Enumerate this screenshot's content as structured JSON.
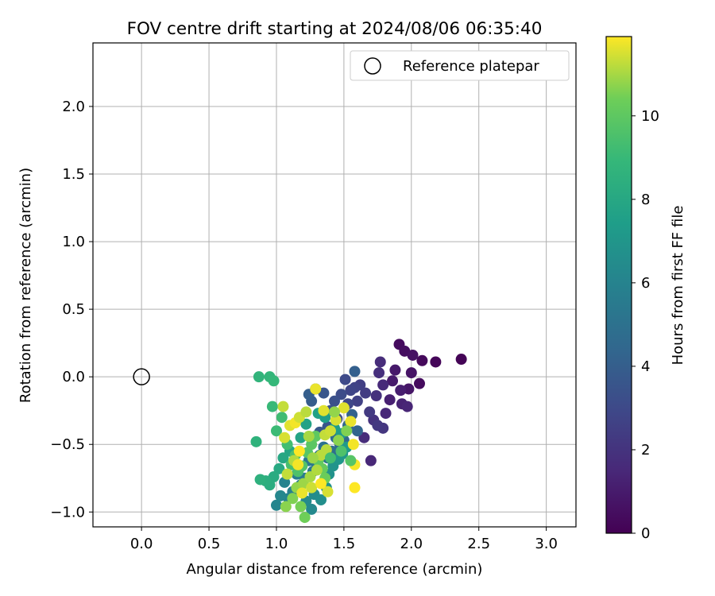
{
  "chart_data": {
    "type": "scatter",
    "title": "FOV centre drift starting at 2024/08/06 06:35:40",
    "xlabel": "Angular distance from reference (arcmin)",
    "ylabel": "Rotation from reference (arcmin)",
    "xlim": [
      -0.36,
      3.22
    ],
    "ylim": [
      -1.11,
      2.47
    ],
    "xticks": [
      "0.0",
      "0.5",
      "1.0",
      "1.5",
      "2.0",
      "2.5",
      "3.0"
    ],
    "yticks": [
      "−1.0",
      "−0.5",
      "0.0",
      "0.5",
      "1.0",
      "1.5",
      "2.0"
    ],
    "grid": true,
    "legend": {
      "placement": "top-right",
      "entries": [
        "Reference platepar"
      ]
    },
    "reference": {
      "x": 0.0,
      "y": 0.0
    },
    "colorbar": {
      "label": "Hours from first FF file",
      "min": 0,
      "max": 11.9,
      "colormap": "viridis",
      "ticks": [
        "0",
        "2",
        "4",
        "6",
        "8",
        "10"
      ]
    },
    "points": [
      [
        2.37,
        0.13,
        0.1
      ],
      [
        2.18,
        0.11,
        0.2
      ],
      [
        2.08,
        0.12,
        0.3
      ],
      [
        2.06,
        -0.05,
        0.4
      ],
      [
        1.91,
        0.24,
        0.4
      ],
      [
        1.95,
        0.19,
        0.5
      ],
      [
        2.01,
        0.16,
        0.6
      ],
      [
        2.0,
        0.03,
        0.7
      ],
      [
        1.98,
        -0.09,
        0.8
      ],
      [
        1.88,
        0.05,
        0.9
      ],
      [
        1.86,
        -0.03,
        1.0
      ],
      [
        1.92,
        -0.1,
        1.1
      ],
      [
        1.84,
        -0.17,
        1.2
      ],
      [
        1.93,
        -0.2,
        1.3
      ],
      [
        1.97,
        -0.22,
        1.4
      ],
      [
        1.81,
        -0.27,
        1.5
      ],
      [
        1.79,
        -0.06,
        1.6
      ],
      [
        1.77,
        0.11,
        1.7
      ],
      [
        1.76,
        0.03,
        1.8
      ],
      [
        1.74,
        -0.14,
        1.9
      ],
      [
        1.72,
        -0.32,
        2.0
      ],
      [
        1.79,
        -0.38,
        2.1
      ],
      [
        1.75,
        -0.36,
        2.2
      ],
      [
        1.69,
        -0.26,
        2.3
      ],
      [
        1.66,
        -0.12,
        2.4
      ],
      [
        1.62,
        -0.06,
        2.5
      ],
      [
        1.6,
        -0.18,
        2.6
      ],
      [
        1.58,
        -0.08,
        2.7
      ],
      [
        1.55,
        -0.1,
        2.8
      ],
      [
        1.53,
        -0.2,
        2.9
      ],
      [
        1.51,
        -0.02,
        3.0
      ],
      [
        1.48,
        -0.13,
        3.1
      ],
      [
        1.7,
        -0.62,
        1.5
      ],
      [
        1.65,
        -0.45,
        1.7
      ],
      [
        1.45,
        -0.31,
        3.2
      ],
      [
        1.43,
        -0.18,
        3.3
      ],
      [
        1.4,
        -0.25,
        3.4
      ],
      [
        1.38,
        -0.37,
        3.5
      ],
      [
        1.35,
        -0.12,
        3.6
      ],
      [
        1.32,
        -0.41,
        3.7
      ],
      [
        1.29,
        -0.09,
        3.8
      ],
      [
        1.26,
        -0.18,
        3.9
      ],
      [
        1.24,
        -0.13,
        4.0
      ],
      [
        1.58,
        0.04,
        4.1
      ],
      [
        1.56,
        -0.28,
        4.2
      ],
      [
        1.6,
        -0.4,
        4.3
      ],
      [
        1.53,
        -0.36,
        4.4
      ],
      [
        1.5,
        -0.47,
        4.5
      ],
      [
        1.47,
        -0.5,
        4.6
      ],
      [
        1.44,
        -0.45,
        4.7
      ],
      [
        1.41,
        -0.55,
        4.8
      ],
      [
        1.38,
        -0.6,
        4.9
      ],
      [
        1.35,
        -0.52,
        5.0
      ],
      [
        1.32,
        -0.58,
        5.1
      ],
      [
        1.3,
        -0.65,
        5.2
      ],
      [
        1.27,
        -0.7,
        5.3
      ],
      [
        1.24,
        -0.62,
        5.4
      ],
      [
        1.21,
        -0.75,
        5.5
      ],
      [
        1.18,
        -0.8,
        5.6
      ],
      [
        1.15,
        -0.72,
        5.7
      ],
      [
        1.12,
        -0.85,
        5.8
      ],
      [
        1.09,
        -0.9,
        5.9
      ],
      [
        1.06,
        -0.78,
        6.0
      ],
      [
        1.0,
        -0.95,
        6.1
      ],
      [
        1.03,
        -0.88,
        6.2
      ],
      [
        1.26,
        -0.98,
        6.3
      ],
      [
        1.22,
        -0.92,
        6.4
      ],
      [
        1.28,
        -0.87,
        6.5
      ],
      [
        1.33,
        -0.91,
        6.6
      ],
      [
        1.37,
        -0.82,
        6.7
      ],
      [
        1.39,
        -0.72,
        6.8
      ],
      [
        1.42,
        -0.66,
        6.9
      ],
      [
        1.46,
        -0.61,
        7.0
      ],
      [
        1.49,
        -0.57,
        7.1
      ],
      [
        1.52,
        -0.52,
        7.2
      ],
      [
        1.48,
        -0.42,
        7.3
      ],
      [
        1.43,
        -0.38,
        7.4
      ],
      [
        1.36,
        -0.3,
        7.5
      ],
      [
        1.31,
        -0.27,
        7.6
      ],
      [
        1.22,
        -0.35,
        7.7
      ],
      [
        1.18,
        -0.45,
        7.8
      ],
      [
        1.1,
        -0.55,
        7.9
      ],
      [
        1.05,
        -0.6,
        8.0
      ],
      [
        1.02,
        -0.68,
        8.1
      ],
      [
        0.98,
        -0.74,
        8.2
      ],
      [
        0.95,
        -0.8,
        8.3
      ],
      [
        0.92,
        -0.77,
        8.4
      ],
      [
        0.88,
        -0.76,
        8.5
      ],
      [
        0.85,
        -0.48,
        8.6
      ],
      [
        0.87,
        0.0,
        8.7
      ],
      [
        0.95,
        0.0,
        8.8
      ],
      [
        0.98,
        -0.03,
        8.9
      ],
      [
        0.97,
        -0.22,
        9.0
      ],
      [
        1.0,
        -0.4,
        9.1
      ],
      [
        1.04,
        -0.3,
        9.2
      ],
      [
        1.08,
        -0.5,
        9.3
      ],
      [
        1.11,
        -0.65,
        9.4
      ],
      [
        1.14,
        -0.58,
        9.5
      ],
      [
        1.16,
        -0.7,
        9.6
      ],
      [
        1.19,
        -0.66,
        9.7
      ],
      [
        1.23,
        -0.56,
        9.8
      ],
      [
        1.26,
        -0.5,
        9.9
      ],
      [
        1.29,
        -0.44,
        10.0
      ],
      [
        1.31,
        -0.62,
        10.1
      ],
      [
        1.34,
        -0.68,
        10.2
      ],
      [
        1.36,
        -0.75,
        10.3
      ],
      [
        1.21,
        -1.04,
        10.4
      ],
      [
        1.18,
        -0.96,
        10.5
      ],
      [
        1.12,
        -0.9,
        10.6
      ],
      [
        1.07,
        -0.96,
        10.7
      ],
      [
        1.15,
        -0.82,
        10.8
      ],
      [
        1.2,
        -0.79,
        10.9
      ],
      [
        1.25,
        -0.74,
        11.0
      ],
      [
        1.3,
        -0.69,
        11.1
      ],
      [
        1.33,
        -0.58,
        11.2
      ],
      [
        1.36,
        -0.43,
        11.3
      ],
      [
        1.4,
        -0.4,
        11.4
      ],
      [
        1.44,
        -0.32,
        11.5
      ],
      [
        1.5,
        -0.23,
        11.6
      ],
      [
        1.55,
        -0.33,
        11.7
      ],
      [
        1.57,
        -0.5,
        11.8
      ],
      [
        1.58,
        -0.65,
        11.85
      ],
      [
        1.58,
        -0.82,
        11.9
      ],
      [
        1.38,
        -0.85,
        11.5
      ],
      [
        1.29,
        -0.09,
        11.7
      ],
      [
        1.05,
        -0.22,
        11.3
      ],
      [
        1.1,
        -0.36,
        11.6
      ],
      [
        1.14,
        -0.34,
        11.8
      ],
      [
        1.17,
        -0.3,
        11.4
      ],
      [
        1.22,
        -0.26,
        11.2
      ],
      [
        1.17,
        -0.55,
        11.9
      ],
      [
        1.13,
        -0.62,
        11.1
      ],
      [
        1.27,
        -0.6,
        10.9
      ],
      [
        1.24,
        -0.44,
        11.0
      ],
      [
        1.35,
        -0.25,
        11.6
      ],
      [
        1.06,
        -0.45,
        11.5
      ],
      [
        1.16,
        -0.65,
        11.8
      ],
      [
        1.08,
        -0.72,
        11.3
      ],
      [
        1.19,
        -0.86,
        11.7
      ],
      [
        1.26,
        -0.82,
        11.4
      ],
      [
        1.33,
        -0.79,
        11.9
      ],
      [
        1.37,
        -0.54,
        11.2
      ],
      [
        1.43,
        -0.26,
        10.8
      ],
      [
        1.46,
        -0.47,
        10.7
      ],
      [
        1.52,
        -0.4,
        10.6
      ],
      [
        1.55,
        -0.62,
        9.8
      ],
      [
        1.48,
        -0.55,
        9.6
      ],
      [
        1.4,
        -0.6,
        9.3
      ]
    ]
  }
}
